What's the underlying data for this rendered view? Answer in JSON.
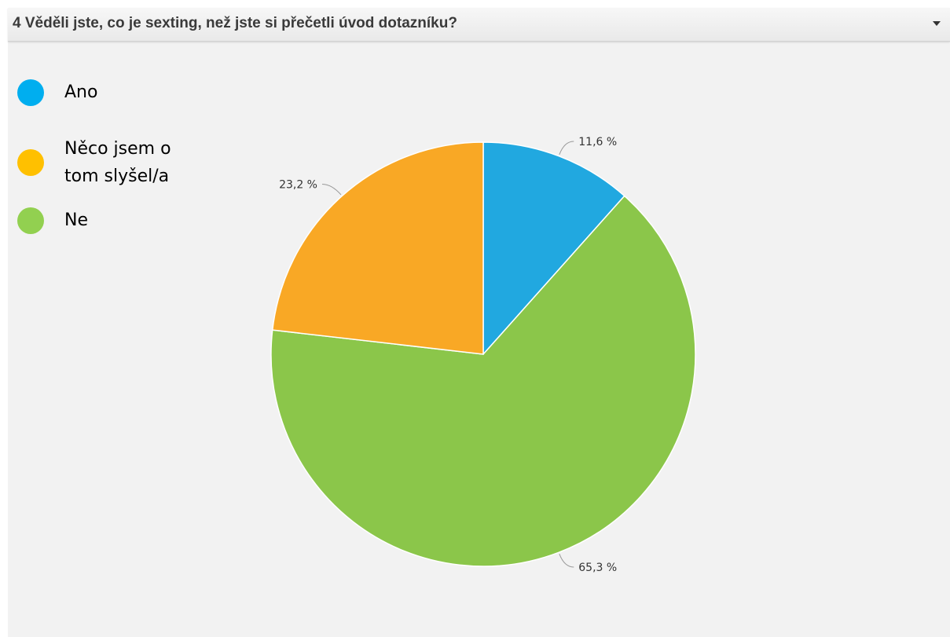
{
  "header": {
    "title": "4 Věděli jste, co je sexting, než jste si přečetli úvod dotazníku?",
    "toggle_icon": "caret-down-icon"
  },
  "chart_data": {
    "type": "pie",
    "slices": [
      {
        "label": "Ano",
        "value": 11.6,
        "value_label": "11,6 %",
        "color": "#21a8e0"
      },
      {
        "label": "Něco jsem o\ntom slyšel/a",
        "value": 23.2,
        "value_label": "23,2 %",
        "color": "#f9a825"
      },
      {
        "label": "Ne",
        "value": 65.3,
        "value_label": "65,3 %",
        "color": "#8bc64a"
      }
    ],
    "legend": {
      "placement": "left",
      "items": [
        {
          "label": "Ano",
          "color": "#00aeef"
        },
        {
          "label": "Něco jsem o\ntom slyšel/a",
          "color": "#ffc000"
        },
        {
          "label": "Ne",
          "color": "#92d050"
        }
      ]
    }
  }
}
